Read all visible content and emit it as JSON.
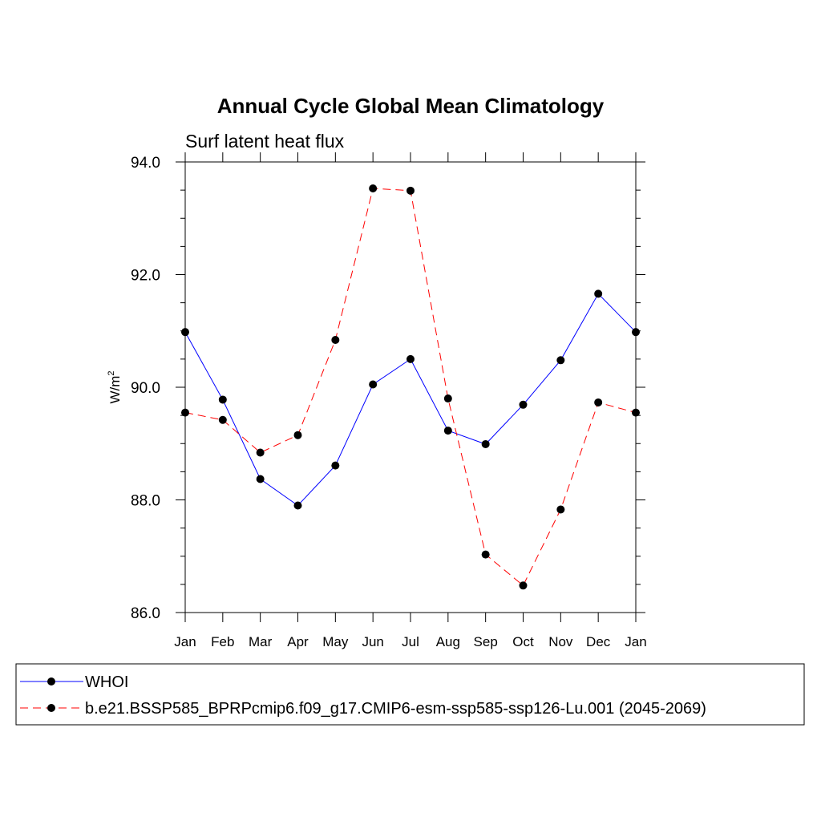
{
  "chart_data": {
    "type": "line",
    "title": "Annual Cycle Global Mean Climatology",
    "subtitle": "Surf latent heat flux",
    "ylabel": "W/m",
    "ylabel_sup": "2",
    "xlabel": "",
    "ylim": [
      86.0,
      94.0
    ],
    "ytick_labels": [
      "86.0",
      "88.0",
      "90.0",
      "92.0",
      "94.0"
    ],
    "ytick_values": [
      86.0,
      88.0,
      90.0,
      92.0,
      94.0
    ],
    "categories": [
      "Jan",
      "Feb",
      "Mar",
      "Apr",
      "May",
      "Jun",
      "Jul",
      "Aug",
      "Sep",
      "Oct",
      "Nov",
      "Dec",
      "Jan"
    ],
    "series": [
      {
        "name": "WHOI",
        "color": "#0000ff",
        "dash": "solid",
        "values": [
          90.98,
          89.78,
          88.37,
          87.9,
          88.61,
          90.05,
          90.5,
          89.23,
          88.99,
          89.69,
          90.48,
          91.66,
          90.98
        ]
      },
      {
        "name": "b.e21.BSSP585_BPRPcmip6.f09_g17.CMIP6-esm-ssp585-ssp126-Lu.001 (2045-2069)",
        "color": "#ff0000",
        "dash": "dashed",
        "values": [
          89.55,
          89.42,
          88.84,
          89.15,
          90.84,
          93.53,
          93.49,
          89.8,
          87.03,
          86.48,
          87.83,
          89.73,
          89.55
        ]
      }
    ],
    "legend_position": "bottom"
  }
}
